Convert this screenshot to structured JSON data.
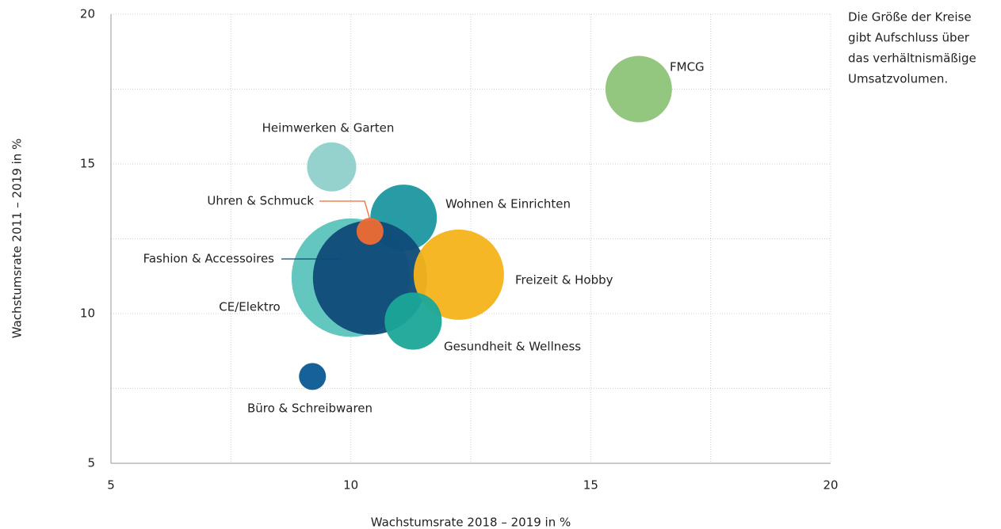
{
  "chart_data": {
    "type": "bubble",
    "note": [
      "Die Größe der Kreise",
      "gibt Aufschluss über",
      "das verhältnismäßige",
      "Umsatzvolumen."
    ],
    "x_label": "Wachstumsrate 2018 – 2019 in %",
    "y_label": "Wachstumsrate 2011 – 2019 in %",
    "xlim": [
      5,
      20
    ],
    "ylim": [
      5,
      20
    ],
    "xticks": [
      5,
      10,
      15,
      20
    ],
    "yticks": [
      5,
      10,
      15,
      20
    ],
    "xgrid": [
      7.5,
      10,
      12.5,
      15,
      17.5,
      20
    ],
    "ygrid": [
      7.5,
      10,
      12.5,
      15,
      17.5,
      20
    ],
    "grid": true,
    "series": [
      {
        "name": "Fashion & Accessoires",
        "color": "#5cc4bc",
        "x": [
          10.0
        ],
        "values": [
          11.2
        ],
        "sizes": [
          56
        ]
      },
      {
        "name": "Wohnen & Einrichten",
        "color": "#1b97a0",
        "x": [
          11.1
        ],
        "values": [
          13.2
        ],
        "sizes": [
          17.6
        ]
      },
      {
        "name": "CE/Elektro",
        "color": "#0f4a78",
        "x": [
          10.4
        ],
        "values": [
          11.2
        ],
        "sizes": [
          52
        ]
      },
      {
        "name": "Freizeit & Hobby",
        "color": "#f6b31a",
        "x": [
          12.25
        ],
        "values": [
          11.3
        ],
        "sizes": [
          32.5
        ]
      },
      {
        "name": "Gesundheit & Wellness",
        "color": "#1ba698",
        "x": [
          11.3
        ],
        "values": [
          9.75
        ],
        "sizes": [
          13
        ]
      },
      {
        "name": "Uhren & Schmuck",
        "color": "#ee6b33",
        "x": [
          10.4
        ],
        "values": [
          12.75
        ],
        "sizes": [
          2.9
        ]
      },
      {
        "name": "Heimwerken & Garten",
        "color": "#8fd0ca",
        "x": [
          9.6
        ],
        "values": [
          14.9
        ],
        "sizes": [
          9.6
        ]
      },
      {
        "name": "FMCG",
        "color": "#8dc378",
        "x": [
          16.0
        ],
        "values": [
          17.5
        ],
        "sizes": [
          17.6
        ]
      },
      {
        "name": "Büro & Schreibwaren",
        "color": "#0a5a92",
        "x": [
          9.2
        ],
        "values": [
          7.9
        ],
        "sizes": [
          2.9
        ]
      }
    ]
  }
}
